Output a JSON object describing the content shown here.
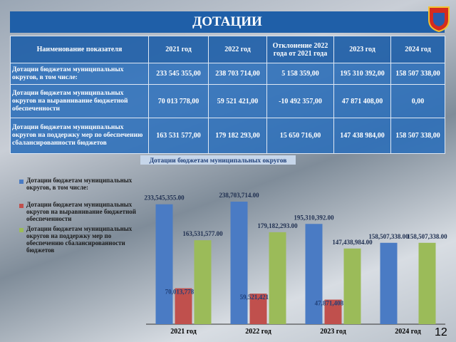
{
  "title": "ДОТАЦИИ",
  "table": {
    "header": [
      "Наименование показателя",
      "2021 год",
      "2022 год",
      "Отклонение 2022 года от 2021 года",
      "2023 год",
      "2024 год"
    ],
    "rows": [
      [
        "Дотации бюджетам муниципальных округов, в том числе:",
        "233 545 355,00",
        "238 703 714,00",
        "5 158 359,00",
        "195 310 392,00",
        "158 507 338,00"
      ],
      [
        "Дотации бюджетам муниципальных округов на выравнивание бюджетной обеспеченности",
        "70 013 778,00",
        "59 521 421,00",
        "-10 492 357,00",
        "47 871 408,00",
        "0,00"
      ],
      [
        "Дотации бюджетам муниципальных округов на поддержку мер по обеспечению сбалансированности бюджетов",
        "163 531 577,00",
        "179 182 293,00",
        "15 650 716,00",
        "147 438 984,00",
        "158 507 338,00"
      ]
    ]
  },
  "chart_data": {
    "type": "bar",
    "title": "Дотации бюджетам муниципальных округов",
    "categories": [
      "2021 год",
      "2022 год",
      "2023 год",
      "2024 год"
    ],
    "series": [
      {
        "name": "Дотации бюджетам муниципальных округов, в том числе:",
        "color": "#4a7bc4",
        "values": [
          233545355,
          238703714,
          195310392,
          158507338
        ],
        "value_labels": [
          "233,545,355.00",
          "238,703,714.00",
          "195,310,392.00",
          "158,507,338.00"
        ]
      },
      {
        "name": "Дотации бюджетам муниципальных округов на выравнивание бюджетной обеспеченности",
        "color": "#c0504d",
        "values": [
          70013778,
          59521421,
          47871408,
          null
        ],
        "value_labels": [
          "70,013,778.00",
          "59,521,421.00",
          "47,871,408.00",
          null
        ]
      },
      {
        "name": "Дотации бюджетам муниципальных округов на поддержку мер по обеспечению сбалансированности бюджетов",
        "color": "#9bbb59",
        "values": [
          163531577,
          179182293,
          147438984,
          158507338
        ],
        "value_labels": [
          "163,531,577.00",
          "179,182,293.00",
          "147,438,984.00",
          "158,507,338.00"
        ]
      }
    ]
  },
  "page_number": "12"
}
